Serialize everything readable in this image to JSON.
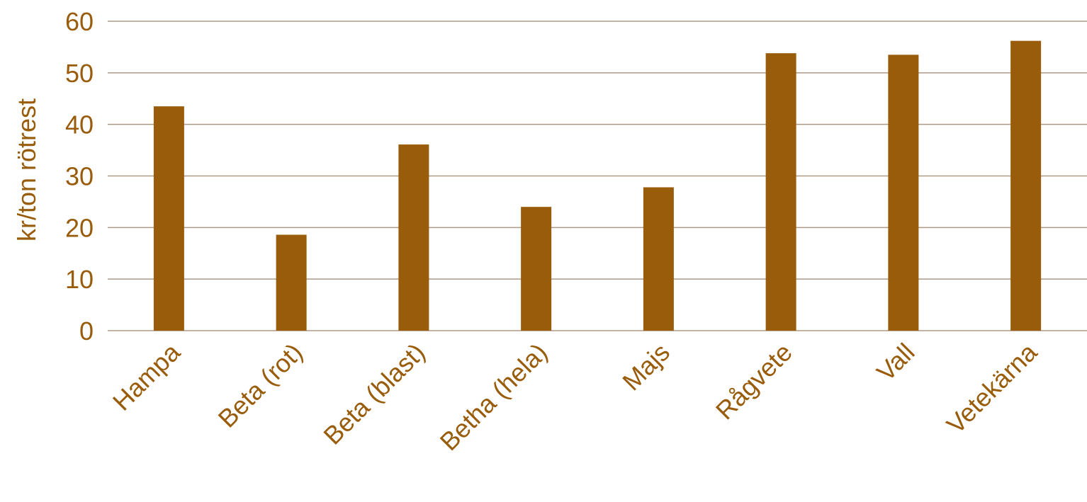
{
  "colors": {
    "bar": "#995C0B",
    "text": "#995C0B",
    "grid": "#AD9A86",
    "background": "#FFFFFF"
  },
  "chart_data": {
    "type": "bar",
    "title": "",
    "xlabel": "",
    "ylabel": "kr/ton rötrest",
    "categories": [
      "Hampa",
      "Beta (rot)",
      "Beta (blast)",
      "Betha (hela)",
      "Majs",
      "Rågvete",
      "Vall",
      "Vetekärna"
    ],
    "values": [
      43.5,
      18.6,
      36.1,
      24.0,
      27.8,
      53.8,
      53.5,
      56.2
    ],
    "ylim": [
      0,
      60
    ],
    "yticks": [
      0,
      10,
      20,
      30,
      40,
      50,
      60
    ],
    "grid": true,
    "legend": "none"
  }
}
